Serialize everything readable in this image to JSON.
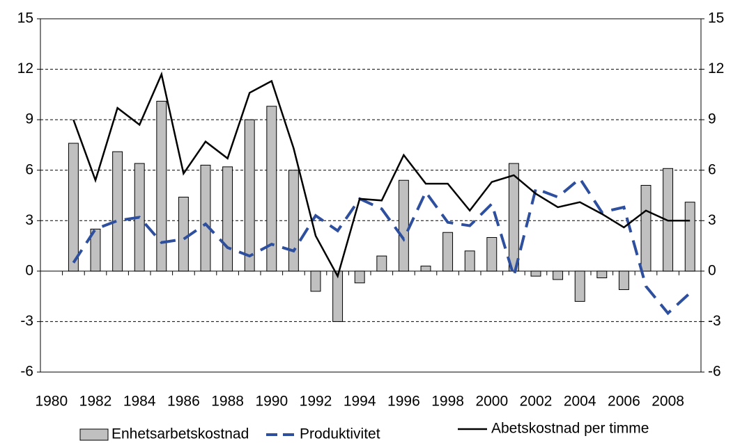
{
  "chart_data": {
    "type": "bar-line",
    "categories": [
      "1980",
      null,
      "1982",
      null,
      "1984",
      null,
      "1986",
      null,
      "1988",
      null,
      "1990",
      null,
      "1992",
      null,
      "1994",
      null,
      "1996",
      null,
      "1998",
      null,
      "2000",
      null,
      "2002",
      null,
      "2004",
      null,
      "2006",
      null,
      "2008",
      null
    ],
    "series": [
      {
        "name": "Enhetsarbetskostnad",
        "kind": "bar",
        "color": "#c0c0c0",
        "values": [
          null,
          7.6,
          2.5,
          7.1,
          6.4,
          10.1,
          4.4,
          6.3,
          6.2,
          9.0,
          9.8,
          6.0,
          -1.2,
          -3.0,
          -0.7,
          0.9,
          5.4,
          0.3,
          2.3,
          1.2,
          2.0,
          6.4,
          -0.3,
          -0.5,
          -1.8,
          -0.4,
          -1.1,
          5.1,
          6.1,
          4.1
        ]
      },
      {
        "name": "Produktivitet",
        "kind": "dashed-line",
        "color": "#2e4f9e",
        "values": [
          null,
          0.5,
          2.5,
          3.0,
          3.2,
          1.7,
          1.9,
          2.8,
          1.4,
          0.9,
          1.6,
          1.2,
          3.3,
          2.4,
          4.3,
          3.7,
          1.9,
          4.7,
          2.9,
          2.7,
          4.0,
          -0.3,
          4.9,
          4.4,
          5.5,
          3.5,
          3.8,
          -0.9,
          -2.5,
          -1.3
        ]
      },
      {
        "name": "Abetskostnad per timme",
        "kind": "line",
        "color": "#000000",
        "values": [
          null,
          9.0,
          5.4,
          9.7,
          8.7,
          11.7,
          5.8,
          7.7,
          6.7,
          10.6,
          11.3,
          7.3,
          2.1,
          -0.3,
          4.3,
          4.2,
          6.9,
          5.2,
          5.2,
          3.6,
          5.3,
          5.7,
          4.6,
          3.8,
          4.1,
          3.4,
          2.6,
          3.6,
          3.0,
          3.0
        ]
      }
    ],
    "ylim": [
      -6,
      15
    ],
    "yticks": [
      -6,
      -3,
      0,
      3,
      6,
      9,
      12,
      15
    ],
    "y2lim": [
      -6,
      15
    ],
    "y2ticks": [
      -6,
      -3,
      0,
      3,
      6,
      9,
      12,
      15
    ],
    "grid": true,
    "legend": "bottom"
  }
}
